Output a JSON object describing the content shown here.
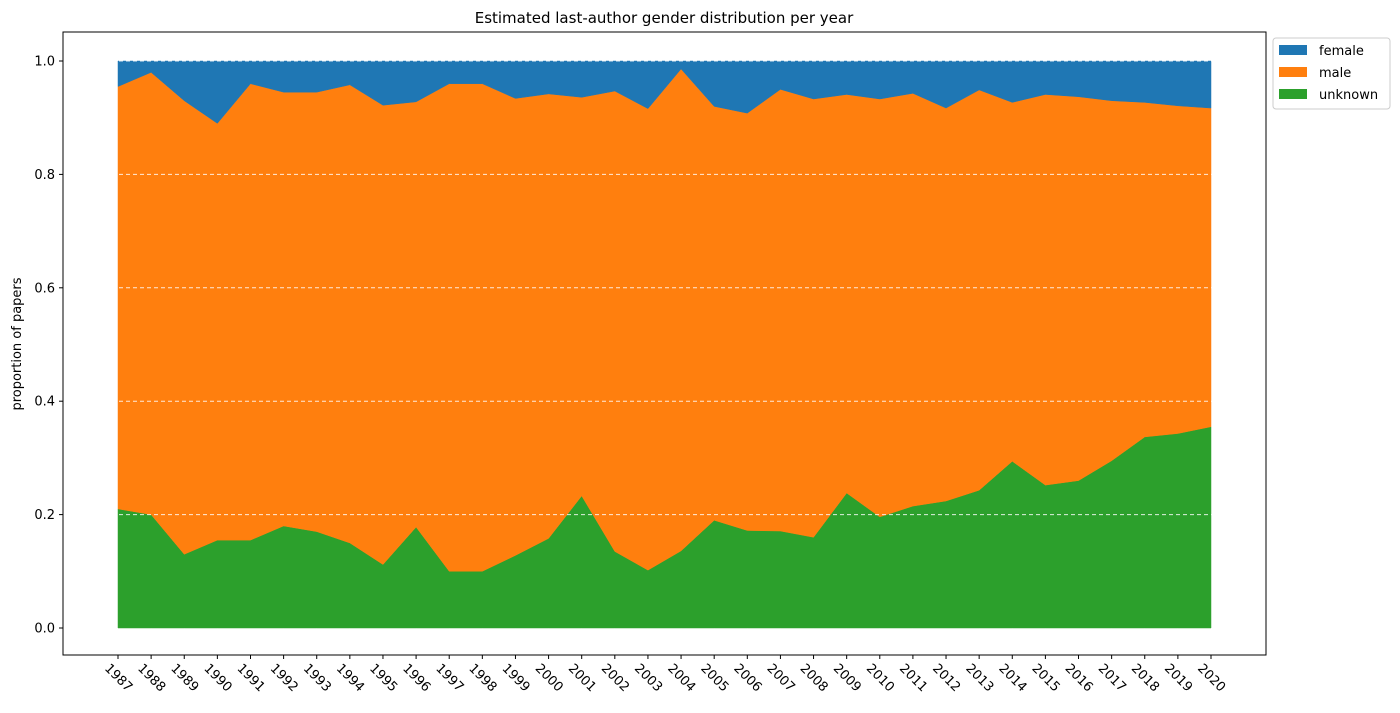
{
  "chart_data": {
    "type": "area",
    "stacked": true,
    "title": "Estimated last-author gender distribution per year",
    "xlabel": "",
    "ylabel": "proportion of papers",
    "ylim": [
      0,
      1.05
    ],
    "yticks": [
      "0.0",
      "0.2",
      "0.4",
      "0.6",
      "0.8",
      "1.0"
    ],
    "grid": "horizontal dashed",
    "legend_position": "outside top-right",
    "categories": [
      "1987",
      "1988",
      "1989",
      "1990",
      "1991",
      "1992",
      "1993",
      "1994",
      "1995",
      "1996",
      "1997",
      "1998",
      "1999",
      "2000",
      "2001",
      "2002",
      "2003",
      "2004",
      "2005",
      "2006",
      "2007",
      "2008",
      "2009",
      "2010",
      "2011",
      "2012",
      "2013",
      "2014",
      "2015",
      "2016",
      "2017",
      "2018",
      "2019",
      "2020"
    ],
    "series": [
      {
        "name": "unknown",
        "color": "#2ca02c",
        "values": [
          0.21,
          0.2,
          0.13,
          0.155,
          0.155,
          0.18,
          0.17,
          0.15,
          0.112,
          0.178,
          0.1,
          0.1,
          0.128,
          0.158,
          0.233,
          0.135,
          0.102,
          0.136,
          0.19,
          0.172,
          0.171,
          0.16,
          0.238,
          0.196,
          0.215,
          0.224,
          0.243,
          0.294,
          0.252,
          0.26,
          0.295,
          0.337,
          0.343,
          0.355
        ]
      },
      {
        "name": "male",
        "color": "#ff7f0e",
        "values": [
          0.745,
          0.78,
          0.8,
          0.735,
          0.805,
          0.765,
          0.775,
          0.808,
          0.81,
          0.75,
          0.86,
          0.86,
          0.806,
          0.784,
          0.703,
          0.812,
          0.814,
          0.85,
          0.73,
          0.736,
          0.779,
          0.773,
          0.703,
          0.737,
          0.728,
          0.693,
          0.706,
          0.633,
          0.689,
          0.677,
          0.635,
          0.59,
          0.578,
          0.562
        ]
      },
      {
        "name": "female",
        "color": "#1f77b4",
        "values": [
          0.045,
          0.02,
          0.07,
          0.11,
          0.04,
          0.055,
          0.055,
          0.042,
          0.078,
          0.072,
          0.04,
          0.04,
          0.066,
          0.058,
          0.064,
          0.053,
          0.084,
          0.014,
          0.08,
          0.092,
          0.05,
          0.067,
          0.059,
          0.067,
          0.057,
          0.083,
          0.051,
          0.073,
          0.059,
          0.063,
          0.07,
          0.073,
          0.079,
          0.083
        ]
      }
    ],
    "legend": [
      "female",
      "male",
      "unknown"
    ]
  }
}
